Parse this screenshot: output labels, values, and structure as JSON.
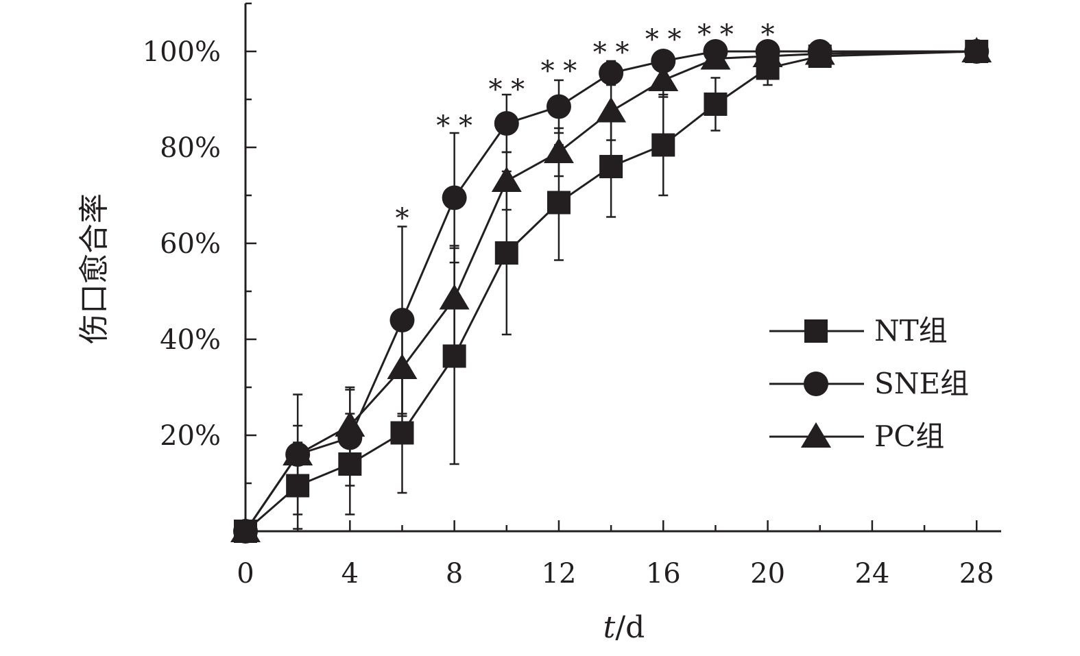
{
  "chart_data": {
    "type": "line",
    "title": "",
    "xlabel_italic": "t",
    "xlabel_unit": "/d",
    "ylabel": "伤口愈合率",
    "xlim": [
      0,
      29
    ],
    "ylim": [
      0,
      110
    ],
    "x_ticks": [
      0,
      4,
      8,
      12,
      16,
      20,
      24,
      28
    ],
    "y_ticks": [
      20,
      40,
      60,
      80,
      100
    ],
    "y_tick_labels": [
      "20%",
      "40%",
      "60%",
      "80%",
      "100%"
    ],
    "grid": false,
    "legend_position": "lower-right",
    "color": "#231f20",
    "series": [
      {
        "name": "NT组",
        "marker": "square",
        "x": [
          0,
          2,
          4,
          6,
          8,
          10,
          12,
          14,
          16,
          18,
          20,
          22,
          28
        ],
        "y": [
          0,
          9.5,
          14,
          20.5,
          36.5,
          58,
          68.5,
          76,
          80.5,
          89,
          96.5,
          99,
          100
        ],
        "err": [
          0,
          9,
          10.5,
          12.5,
          22.5,
          17,
          12,
          10.5,
          10.5,
          5.5,
          3.5,
          1,
          0
        ]
      },
      {
        "name": "SNE组",
        "marker": "circle",
        "x": [
          0,
          2,
          4,
          6,
          8,
          10,
          12,
          14,
          16,
          18,
          20,
          22,
          28
        ],
        "y": [
          0,
          16,
          19.5,
          44,
          69.5,
          85,
          88.5,
          95.5,
          98,
          100,
          100,
          100,
          100
        ],
        "err": [
          0,
          12.5,
          10,
          19.5,
          13.5,
          6,
          5.5,
          2.5,
          1.5,
          0.5,
          0.5,
          0.5,
          0
        ]
      },
      {
        "name": "PC组",
        "marker": "triangle",
        "x": [
          0,
          2,
          4,
          6,
          8,
          10,
          12,
          14,
          16,
          18,
          20,
          22,
          28
        ],
        "y": [
          0,
          16,
          22,
          34,
          48.5,
          73,
          79,
          87.5,
          94,
          98.5,
          99,
          99.5,
          100
        ],
        "err": [
          0,
          6,
          8,
          10,
          11,
          6,
          5,
          6,
          3.5,
          1.5,
          1,
          0.5,
          0
        ]
      }
    ],
    "significance": [
      {
        "x": 6,
        "label": "*"
      },
      {
        "x": 8,
        "label": "**"
      },
      {
        "x": 10,
        "label": "**"
      },
      {
        "x": 12,
        "label": "**"
      },
      {
        "x": 14,
        "label": "**"
      },
      {
        "x": 16,
        "label": "**"
      },
      {
        "x": 18,
        "label": "**"
      },
      {
        "x": 20,
        "label": "*"
      }
    ]
  }
}
